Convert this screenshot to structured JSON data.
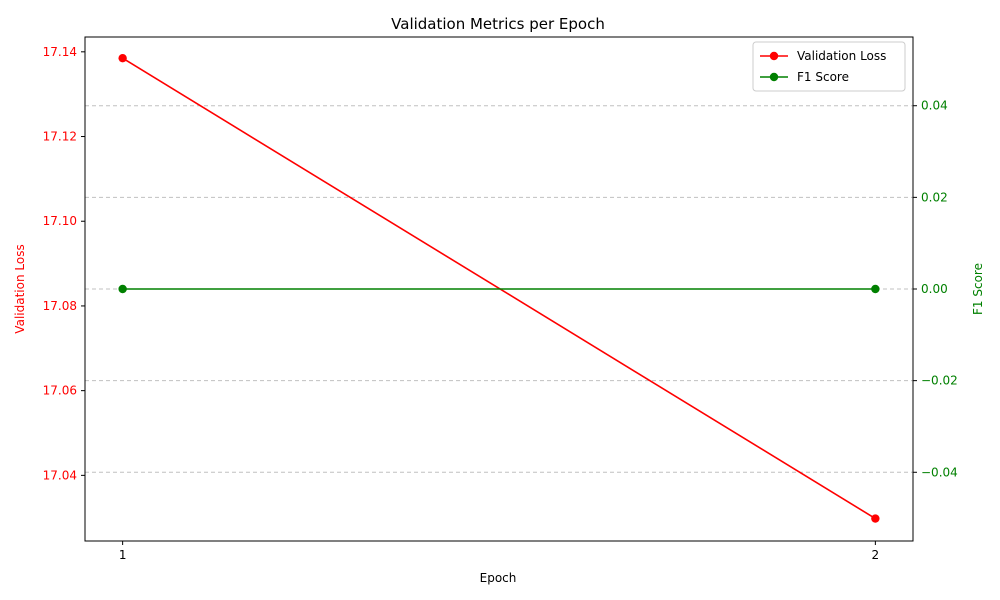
{
  "chart_data": {
    "type": "line",
    "title": "Validation Metrics per Epoch",
    "x": [
      1,
      2
    ],
    "x_tick_labels": [
      "1",
      "2"
    ],
    "xlabel": "Epoch",
    "xlim": [
      0.95,
      2.05
    ],
    "left_axis": {
      "label": "Validation Loss",
      "color": "#ff0000",
      "ylim": [
        17.0245,
        17.1435
      ],
      "ticks": [
        17.04,
        17.06,
        17.08,
        17.1,
        17.12,
        17.14
      ],
      "tick_labels": [
        "17.04",
        "17.06",
        "17.08",
        "17.10",
        "17.12",
        "17.14"
      ]
    },
    "right_axis": {
      "label": "F1 Score",
      "color": "#008000",
      "ylim": [
        -0.055,
        0.055
      ],
      "ticks": [
        -0.04,
        -0.02,
        0.0,
        0.02,
        0.04
      ],
      "tick_labels": [
        "−0.04",
        "−0.02",
        "0.00",
        "0.02",
        "0.04"
      ]
    },
    "series": [
      {
        "name": "Validation Loss",
        "axis": "left",
        "color": "#ff0000",
        "marker": "circle",
        "values": [
          17.1385,
          17.0298
        ]
      },
      {
        "name": "F1 Score",
        "axis": "right",
        "color": "#008000",
        "marker": "circle",
        "values": [
          0.0,
          0.0
        ]
      }
    ],
    "grid": {
      "axis": "y",
      "style": "dashed",
      "color": "#c0c0c0"
    },
    "legend": {
      "position": "top-right"
    }
  }
}
